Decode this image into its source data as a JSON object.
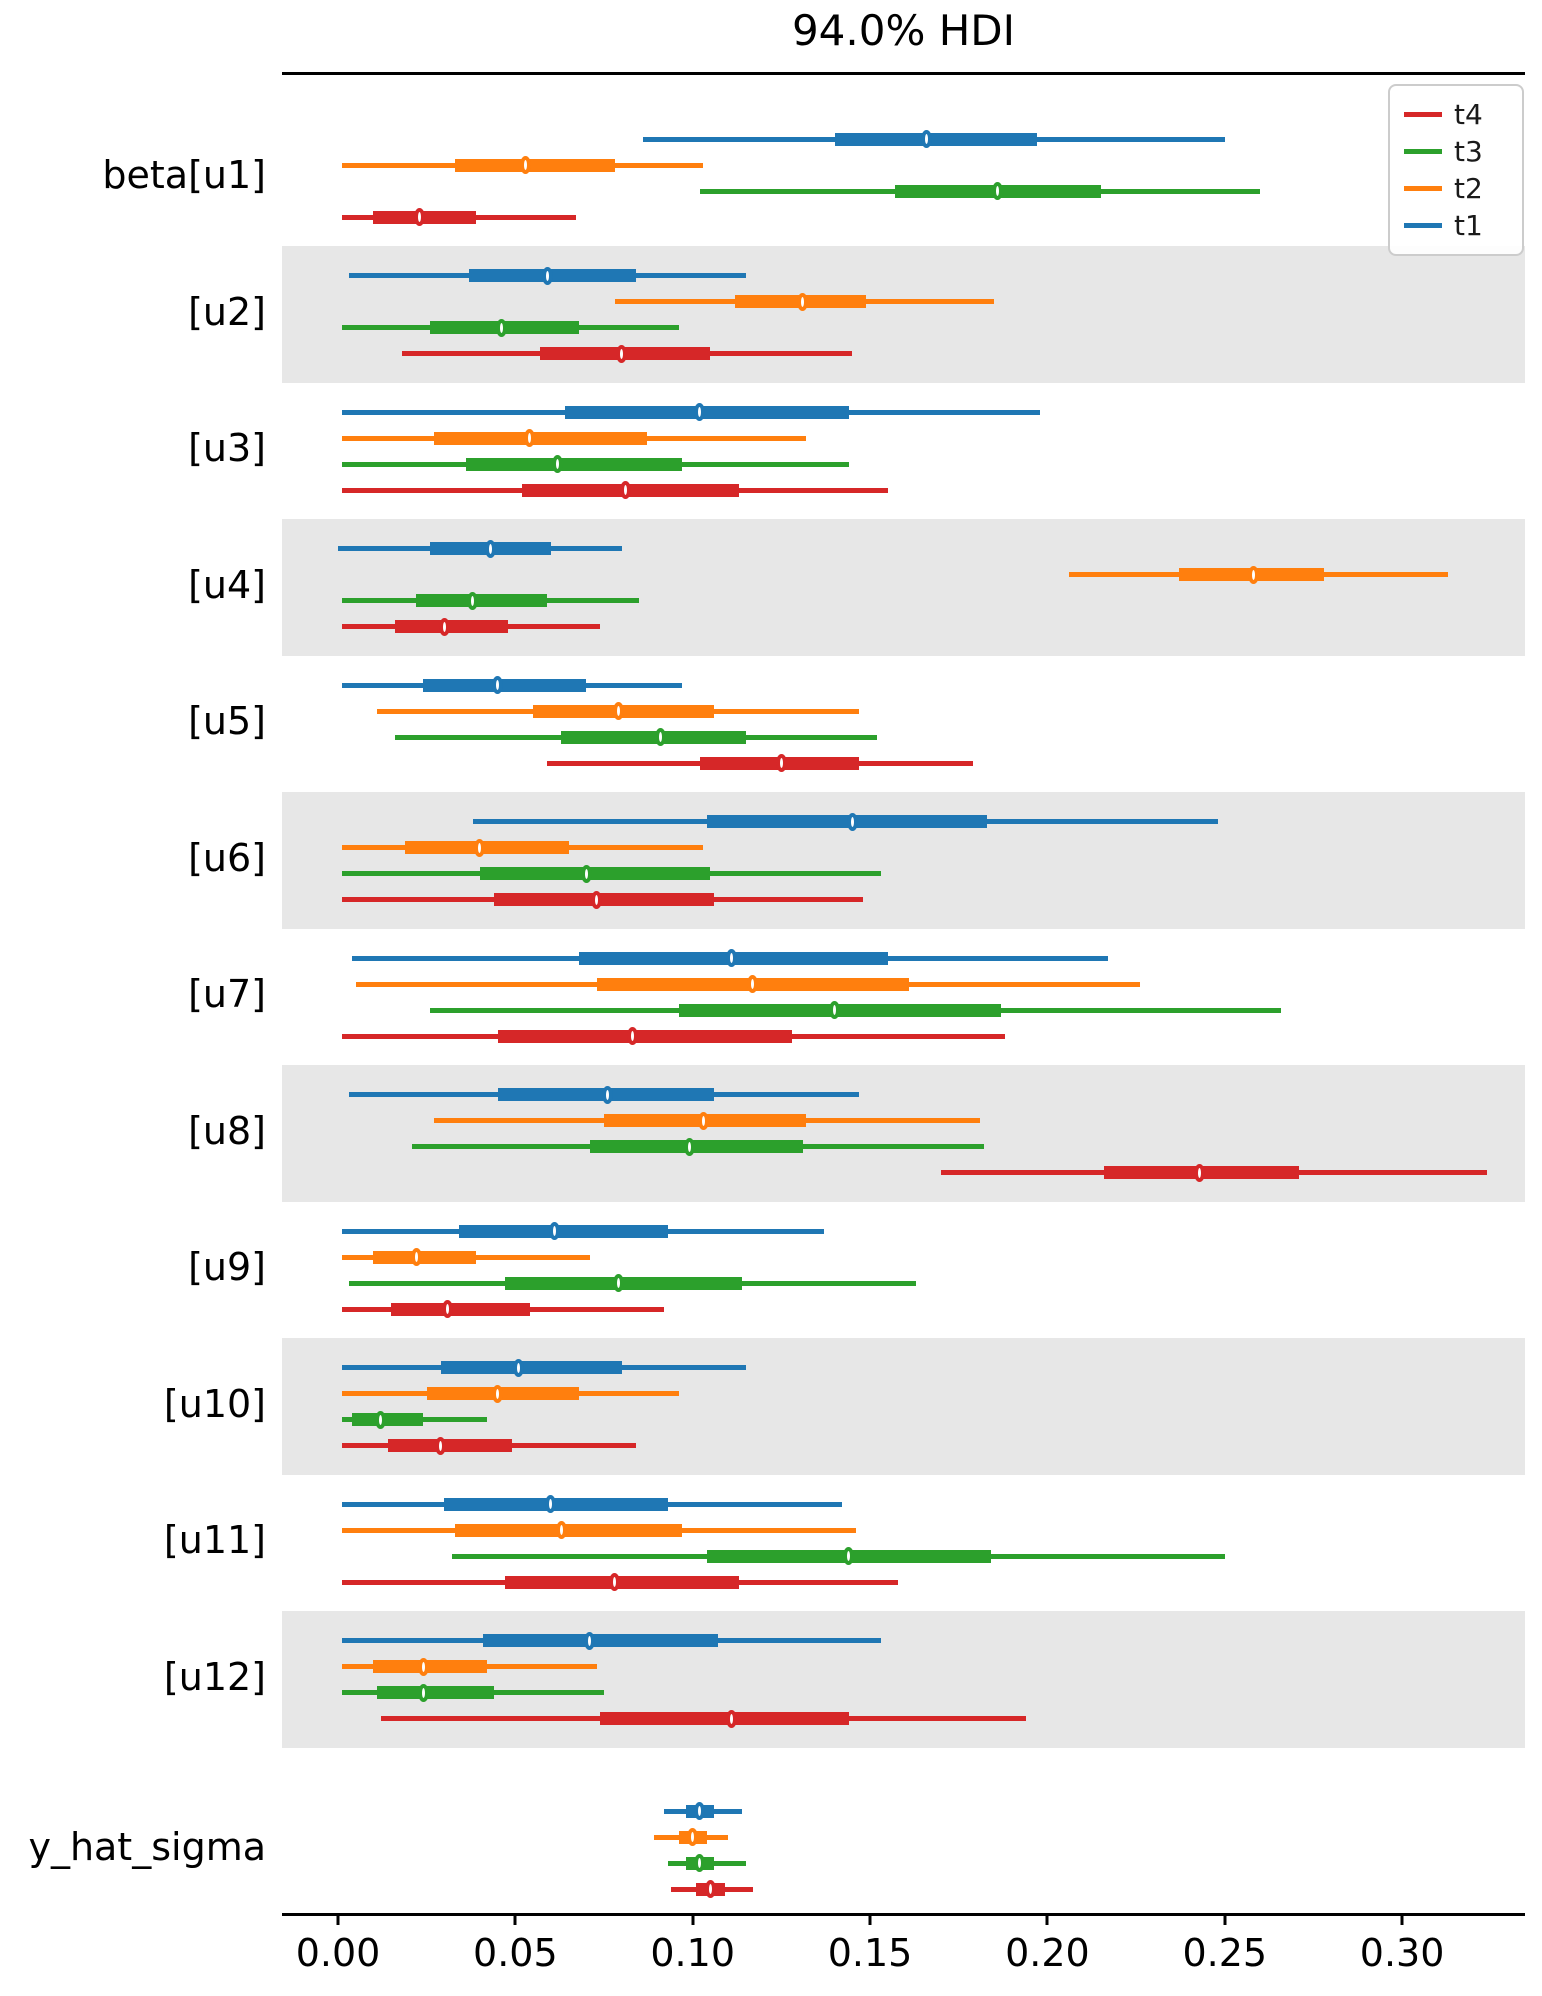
{
  "title": "94.0% HDI",
  "chart_data": {
    "type": "scatter",
    "subtype": "forest-plot-hdi-intervals",
    "title": "94.0% HDI",
    "xlabel": "",
    "ylabel": "",
    "x_range_shown": [
      -0.016,
      0.335
    ],
    "x_ticks": [
      "0.00",
      "0.05",
      "0.10",
      "0.15",
      "0.20",
      "0.25",
      "0.30"
    ],
    "x_tick_values": [
      0.0,
      0.05,
      0.1,
      0.15,
      0.2,
      0.25,
      0.3
    ],
    "grid": "off",
    "legend_position": "upper right",
    "legend": [
      {
        "label": "t4",
        "color": "#d62728"
      },
      {
        "label": "t3",
        "color": "#2ca02c"
      },
      {
        "label": "t2",
        "color": "#ff7f0e"
      },
      {
        "label": "t1",
        "color": "#1f77b4"
      }
    ],
    "series_colors": {
      "t1": "#1f77b4",
      "t2": "#ff7f0e",
      "t3": "#2ca02c",
      "t4": "#d62728"
    },
    "row_order_top_to_bottom": [
      "t1",
      "t2",
      "t3",
      "t4"
    ],
    "values_format": [
      "hdi_low",
      "quartile_low",
      "point",
      "quartile_high",
      "hdi_high"
    ],
    "shaded_band_color": "#e7e7e7",
    "groups": [
      {
        "label": "beta[u1]",
        "shaded": false,
        "rows": {
          "t1": [
            0.086,
            0.14,
            0.166,
            0.197,
            0.25
          ],
          "t2": [
            0.001,
            0.033,
            0.053,
            0.078,
            0.103
          ],
          "t3": [
            0.102,
            0.157,
            0.186,
            0.215,
            0.26
          ],
          "t4": [
            0.001,
            0.01,
            0.023,
            0.039,
            0.067
          ]
        }
      },
      {
        "label": "[u2]",
        "shaded": true,
        "rows": {
          "t1": [
            0.003,
            0.037,
            0.059,
            0.084,
            0.115
          ],
          "t2": [
            0.078,
            0.112,
            0.131,
            0.149,
            0.185
          ],
          "t3": [
            0.001,
            0.026,
            0.046,
            0.068,
            0.096
          ],
          "t4": [
            0.018,
            0.057,
            0.08,
            0.105,
            0.145
          ]
        }
      },
      {
        "label": "[u3]",
        "shaded": false,
        "rows": {
          "t1": [
            0.001,
            0.064,
            0.102,
            0.144,
            0.198
          ],
          "t2": [
            0.001,
            0.027,
            0.054,
            0.087,
            0.132
          ],
          "t3": [
            0.001,
            0.036,
            0.062,
            0.097,
            0.144
          ],
          "t4": [
            0.001,
            0.052,
            0.081,
            0.113,
            0.155
          ]
        }
      },
      {
        "label": "[u4]",
        "shaded": true,
        "rows": {
          "t1": [
            0.0,
            0.026,
            0.043,
            0.06,
            0.08
          ],
          "t2": [
            0.206,
            0.237,
            0.258,
            0.278,
            0.313
          ],
          "t3": [
            0.001,
            0.022,
            0.038,
            0.059,
            0.085
          ],
          "t4": [
            0.001,
            0.016,
            0.03,
            0.048,
            0.074
          ]
        }
      },
      {
        "label": "[u5]",
        "shaded": false,
        "rows": {
          "t1": [
            0.001,
            0.024,
            0.045,
            0.07,
            0.097
          ],
          "t2": [
            0.011,
            0.055,
            0.079,
            0.106,
            0.147
          ],
          "t3": [
            0.016,
            0.063,
            0.091,
            0.115,
            0.152
          ],
          "t4": [
            0.059,
            0.102,
            0.125,
            0.147,
            0.179
          ]
        }
      },
      {
        "label": "[u6]",
        "shaded": true,
        "rows": {
          "t1": [
            0.038,
            0.104,
            0.145,
            0.183,
            0.248
          ],
          "t2": [
            0.001,
            0.019,
            0.04,
            0.065,
            0.103
          ],
          "t3": [
            0.001,
            0.04,
            0.07,
            0.105,
            0.153
          ],
          "t4": [
            0.001,
            0.044,
            0.073,
            0.106,
            0.148
          ]
        }
      },
      {
        "label": "[u7]",
        "shaded": false,
        "rows": {
          "t1": [
            0.004,
            0.068,
            0.111,
            0.155,
            0.217
          ],
          "t2": [
            0.005,
            0.073,
            0.117,
            0.161,
            0.226
          ],
          "t3": [
            0.026,
            0.096,
            0.14,
            0.187,
            0.266
          ],
          "t4": [
            0.001,
            0.045,
            0.083,
            0.128,
            0.188
          ]
        }
      },
      {
        "label": "[u8]",
        "shaded": true,
        "rows": {
          "t1": [
            0.003,
            0.045,
            0.076,
            0.106,
            0.147
          ],
          "t2": [
            0.027,
            0.075,
            0.103,
            0.132,
            0.181
          ],
          "t3": [
            0.021,
            0.071,
            0.099,
            0.131,
            0.182
          ],
          "t4": [
            0.17,
            0.216,
            0.243,
            0.271,
            0.324
          ]
        }
      },
      {
        "label": "[u9]",
        "shaded": false,
        "rows": {
          "t1": [
            0.001,
            0.034,
            0.061,
            0.093,
            0.137
          ],
          "t2": [
            0.001,
            0.01,
            0.022,
            0.039,
            0.071
          ],
          "t3": [
            0.003,
            0.047,
            0.079,
            0.114,
            0.163
          ],
          "t4": [
            0.001,
            0.015,
            0.031,
            0.054,
            0.092
          ]
        }
      },
      {
        "label": "[u10]",
        "shaded": true,
        "rows": {
          "t1": [
            0.001,
            0.029,
            0.051,
            0.08,
            0.115
          ],
          "t2": [
            0.001,
            0.025,
            0.045,
            0.068,
            0.096
          ],
          "t3": [
            0.001,
            0.004,
            0.012,
            0.024,
            0.042
          ],
          "t4": [
            0.001,
            0.014,
            0.029,
            0.049,
            0.084
          ]
        }
      },
      {
        "label": "[u11]",
        "shaded": false,
        "rows": {
          "t1": [
            0.001,
            0.03,
            0.06,
            0.093,
            0.142
          ],
          "t2": [
            0.001,
            0.033,
            0.063,
            0.097,
            0.146
          ],
          "t3": [
            0.032,
            0.104,
            0.144,
            0.184,
            0.25
          ],
          "t4": [
            0.001,
            0.047,
            0.078,
            0.113,
            0.158
          ]
        }
      },
      {
        "label": "[u12]",
        "shaded": true,
        "rows": {
          "t1": [
            0.001,
            0.041,
            0.071,
            0.107,
            0.153
          ],
          "t2": [
            0.001,
            0.01,
            0.024,
            0.042,
            0.073
          ],
          "t3": [
            0.001,
            0.011,
            0.024,
            0.044,
            0.075
          ],
          "t4": [
            0.012,
            0.074,
            0.111,
            0.144,
            0.194
          ]
        }
      },
      {
        "label": "y_hat_sigma",
        "shaded": false,
        "rows": {
          "t1": [
            0.092,
            0.098,
            0.102,
            0.106,
            0.114
          ],
          "t2": [
            0.089,
            0.096,
            0.1,
            0.104,
            0.11
          ],
          "t3": [
            0.093,
            0.098,
            0.102,
            0.106,
            0.115
          ],
          "t4": [
            0.094,
            0.101,
            0.105,
            0.109,
            0.117
          ]
        }
      }
    ]
  }
}
